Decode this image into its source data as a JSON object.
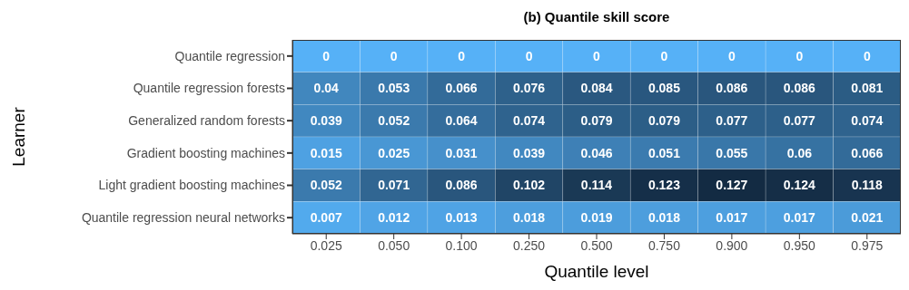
{
  "chart_data": {
    "type": "heatmap",
    "title": "(b) Quantile skill score",
    "xlabel": "Quantile level",
    "ylabel": "Learner",
    "categories": [
      "0.025",
      "0.050",
      "0.100",
      "0.250",
      "0.500",
      "0.750",
      "0.900",
      "0.950",
      "0.975"
    ],
    "y_categories": [
      "Quantile regression",
      "Quantile regression forests",
      "Generalized random forests",
      "Gradient boosting machines",
      "Light gradient boosting machines",
      "Quantile regression neural networks"
    ],
    "cells": [
      [
        0,
        0,
        0,
        0,
        0,
        0,
        0,
        0,
        0
      ],
      [
        0.04,
        0.053,
        0.066,
        0.076,
        0.084,
        0.085,
        0.086,
        0.086,
        0.081
      ],
      [
        0.039,
        0.052,
        0.064,
        0.074,
        0.079,
        0.079,
        0.077,
        0.077,
        0.074
      ],
      [
        0.015,
        0.025,
        0.031,
        0.039,
        0.046,
        0.051,
        0.055,
        0.06,
        0.066
      ],
      [
        0.052,
        0.071,
        0.086,
        0.102,
        0.114,
        0.123,
        0.127,
        0.124,
        0.118
      ],
      [
        0.007,
        0.012,
        0.013,
        0.018,
        0.019,
        0.018,
        0.017,
        0.017,
        0.021
      ]
    ],
    "data_labels": true
  }
}
